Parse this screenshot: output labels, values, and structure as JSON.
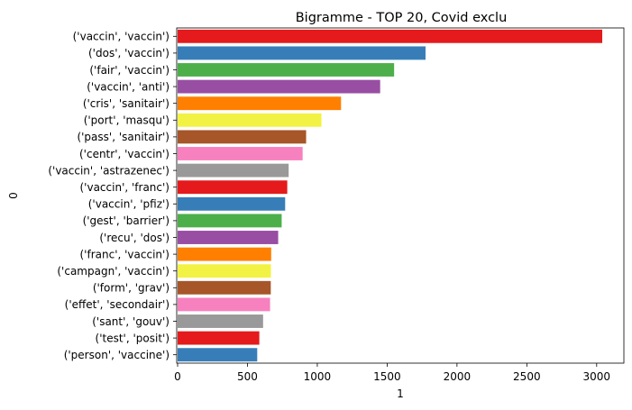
{
  "chart_data": {
    "type": "bar",
    "orientation": "horizontal",
    "title": "Bigramme - TOP 20, Covid exclu",
    "xlabel": "1",
    "ylabel": "0",
    "xlim": [
      0,
      3200
    ],
    "xticks": [
      0,
      500,
      1000,
      1500,
      2000,
      2500,
      3000
    ],
    "grid": false,
    "categories": [
      "('vaccin', 'vaccin')",
      "('dos', 'vaccin')",
      "('fair', 'vaccin')",
      "('vaccin', 'anti')",
      "('cris', 'sanitair')",
      "('port', 'masqu')",
      "('pass', 'sanitair')",
      "('centr', 'vaccin')",
      "('vaccin', 'astrazenec')",
      "('vaccin', 'franc')",
      "('vaccin', 'pfiz')",
      "('gest', 'barrier')",
      "('recu', 'dos')",
      "('franc', 'vaccin')",
      "('campagn', 'vaccin')",
      "('form', 'grav')",
      "('effet', 'secondair')",
      "('sant', 'gouv')",
      "('test', 'posit')",
      "('person', 'vaccine')"
    ],
    "values": [
      3040,
      1775,
      1550,
      1450,
      1170,
      1030,
      920,
      895,
      795,
      785,
      770,
      745,
      720,
      670,
      668,
      667,
      662,
      612,
      585,
      570
    ],
    "colors": [
      "#e41a1c",
      "#377eb8",
      "#4daf4a",
      "#984ea3",
      "#ff7f00",
      "#f2f244",
      "#a65628",
      "#f781bf",
      "#999999"
    ]
  }
}
